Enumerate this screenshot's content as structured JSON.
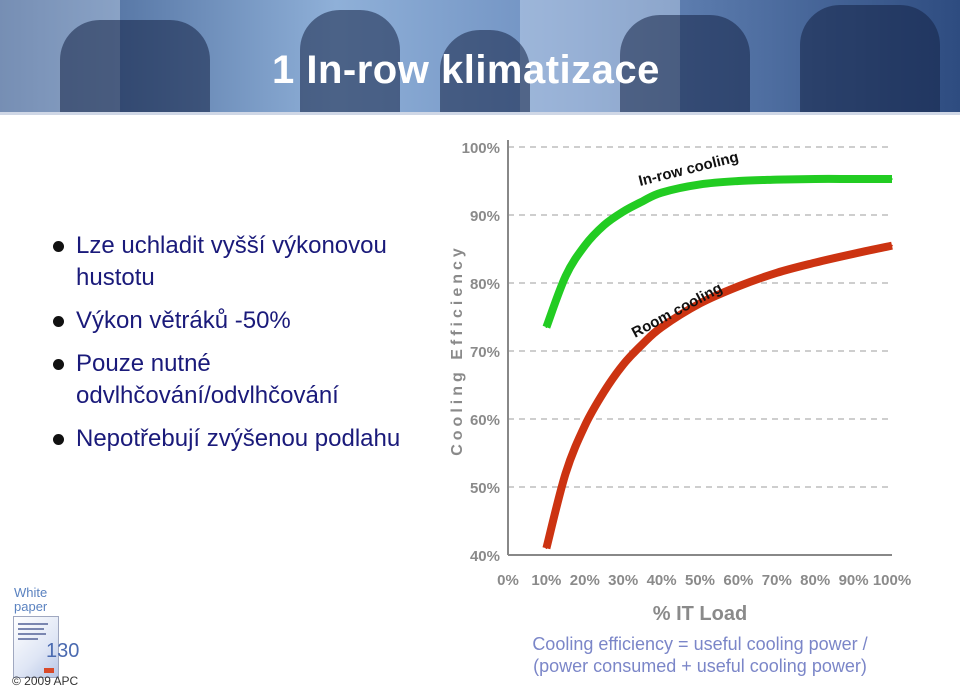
{
  "slide": {
    "title": "1 In-row klimatizace",
    "bullets": [
      "Lze uchladit vyšší výkonovou hustotu",
      "Výkon větráků -50%",
      "Pouze nutné odvlhčování/odvlhčování",
      "Nepotřebují zvýšenou podlahu"
    ],
    "whitepaper_label": "White paper",
    "whitepaper_number": "130",
    "copyright": "© 2009 APC",
    "caption_line1": "Cooling efficiency = useful cooling power /",
    "caption_line2": "(power consumed + useful cooling power)"
  },
  "chart_data": {
    "type": "line",
    "xlabel": "% IT Load",
    "ylabel": "Cooling Efficiency",
    "x_ticks": [
      "0%",
      "10%",
      "20%",
      "30%",
      "40%",
      "50%",
      "60%",
      "70%",
      "80%",
      "90%",
      "100%"
    ],
    "y_ticks": [
      "40%",
      "50%",
      "60%",
      "70%",
      "80%",
      "90%",
      "100%"
    ],
    "xlim": [
      0,
      100
    ],
    "ylim": [
      40,
      100
    ],
    "grid": "horizontal-dashed",
    "series": [
      {
        "name": "In-row cooling",
        "color": "#22cc22",
        "x": [
          10,
          15,
          20,
          25,
          30,
          35,
          40,
          50,
          60,
          70,
          80,
          90,
          100
        ],
        "y": [
          73.5,
          81,
          85.5,
          88.5,
          90.5,
          92,
          93.3,
          94.5,
          95,
          95.2,
          95.3,
          95.3,
          95.3
        ]
      },
      {
        "name": "Room cooling",
        "color": "#cc3311",
        "x": [
          10,
          15,
          20,
          25,
          30,
          35,
          40,
          50,
          60,
          70,
          80,
          90,
          100
        ],
        "y": [
          41,
          52,
          59,
          64,
          68,
          71,
          73.5,
          77,
          79.5,
          81.5,
          83,
          84.3,
          85.5
        ]
      }
    ]
  }
}
